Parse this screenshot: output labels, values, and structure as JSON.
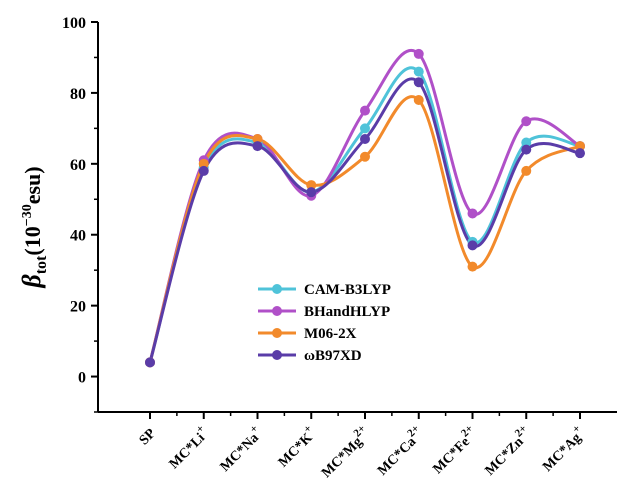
{
  "chart_data": {
    "type": "line",
    "smooth": true,
    "ylabel": {
      "symbol": "β",
      "subscript": "tot",
      "unit_prefix": "(10",
      "exponent": "−30",
      "unit_suffix": "esu)"
    },
    "ylim": [
      -10,
      100
    ],
    "yticks": [
      0,
      20,
      40,
      60,
      80,
      100
    ],
    "categories": [
      {
        "base": "SP",
        "sup": ""
      },
      {
        "base": "MC*Li",
        "sup": "+"
      },
      {
        "base": "MC*Na",
        "sup": "+"
      },
      {
        "base": "MC*K",
        "sup": "+"
      },
      {
        "base": "MC*Mg",
        "sup": "2+"
      },
      {
        "base": "MC*Ca",
        "sup": "2+"
      },
      {
        "base": "MC*Fe",
        "sup": "2+"
      },
      {
        "base": "MC*Zn",
        "sup": "2+"
      },
      {
        "base": "MC*Ag",
        "sup": "+"
      }
    ],
    "series": [
      {
        "name": "CAM-B3LYP",
        "color": "#4fc3d9",
        "values": [
          4,
          59,
          66,
          52,
          70,
          86,
          38,
          66,
          65
        ]
      },
      {
        "name": "BHandHLYP",
        "color": "#b050c8",
        "values": [
          4,
          61,
          67,
          51,
          75,
          91,
          46,
          72,
          65
        ]
      },
      {
        "name": "M06-2X",
        "color": "#f28a2b",
        "values": [
          4,
          60,
          67,
          54,
          62,
          78,
          31,
          58,
          65
        ]
      },
      {
        "name": "ωB97XD",
        "color": "#5a3ca8",
        "values": [
          4,
          58,
          65,
          52,
          67,
          83,
          37,
          64,
          63
        ]
      }
    ],
    "legend_position": "lower-center",
    "grid": false
  }
}
